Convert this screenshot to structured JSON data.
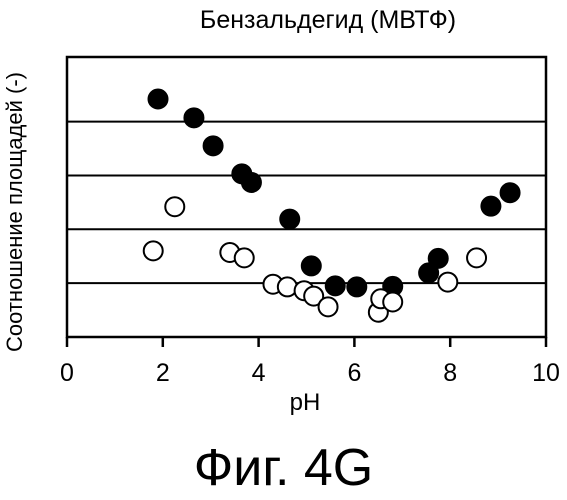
{
  "caption": "Фиг. 4G",
  "chart_data": {
    "type": "scatter",
    "title": "Бензальдегид (МВТФ)",
    "xlabel": "pH",
    "ylabel": "Соотношение площадей (-)",
    "xlim": [
      0,
      10
    ],
    "ylim": [
      0,
      5.2
    ],
    "xticks": [
      0,
      2,
      4,
      6,
      8,
      10
    ],
    "xtick_labels": [
      "0",
      "2",
      "4",
      "6",
      "8",
      "10"
    ],
    "yticks": [
      1,
      2,
      3,
      4
    ],
    "grid": "horizontal",
    "series": [
      {
        "style": "filled",
        "color": "#000000",
        "points": [
          {
            "x": 1.9,
            "y": 4.42
          },
          {
            "x": 2.65,
            "y": 4.07
          },
          {
            "x": 3.05,
            "y": 3.55
          },
          {
            "x": 3.65,
            "y": 3.03
          },
          {
            "x": 3.85,
            "y": 2.87
          },
          {
            "x": 4.65,
            "y": 2.19
          },
          {
            "x": 5.1,
            "y": 1.32
          },
          {
            "x": 5.6,
            "y": 0.95
          },
          {
            "x": 6.05,
            "y": 0.93
          },
          {
            "x": 6.8,
            "y": 0.94
          },
          {
            "x": 7.55,
            "y": 1.19
          },
          {
            "x": 7.75,
            "y": 1.46
          },
          {
            "x": 8.85,
            "y": 2.43
          },
          {
            "x": 9.25,
            "y": 2.68
          }
        ]
      },
      {
        "style": "open",
        "color": "#000000",
        "points": [
          {
            "x": 1.8,
            "y": 1.6
          },
          {
            "x": 2.25,
            "y": 2.42
          },
          {
            "x": 3.4,
            "y": 1.57
          },
          {
            "x": 3.7,
            "y": 1.47
          },
          {
            "x": 4.3,
            "y": 0.98
          },
          {
            "x": 4.6,
            "y": 0.93
          },
          {
            "x": 4.95,
            "y": 0.86
          },
          {
            "x": 5.15,
            "y": 0.76
          },
          {
            "x": 5.45,
            "y": 0.56
          },
          {
            "x": 6.5,
            "y": 0.46
          },
          {
            "x": 6.55,
            "y": 0.71
          },
          {
            "x": 6.8,
            "y": 0.65
          },
          {
            "x": 7.95,
            "y": 1.02
          },
          {
            "x": 8.55,
            "y": 1.47
          }
        ]
      }
    ]
  }
}
